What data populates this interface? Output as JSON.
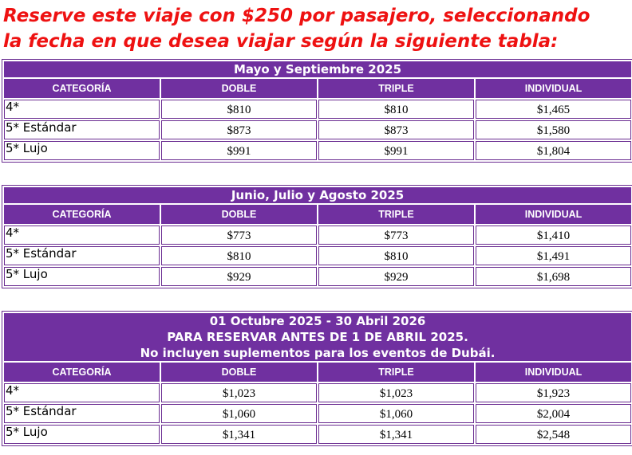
{
  "headline": {
    "line1": "Reserve este viaje con $250 por pasajero, seleccionando",
    "line2": "la fecha en que desea viajar según la siguiente tabla:"
  },
  "columns": [
    "CATEGORÍA",
    "DOBLE",
    "TRIPLE",
    "INDIVIDUAL"
  ],
  "tables": [
    {
      "title_lines": [
        "Mayo y Septiembre 2025"
      ],
      "rows": [
        {
          "category": "4*",
          "doble": "$810",
          "triple": "$810",
          "individual": "$1,465"
        },
        {
          "category": "5* Estándar",
          "doble": "$873",
          "triple": "$873",
          "individual": "$1,580"
        },
        {
          "category": "5* Lujo",
          "doble": "$991",
          "triple": "$991",
          "individual": "$1,804"
        }
      ]
    },
    {
      "title_lines": [
        "Junio, Julio y Agosto 2025"
      ],
      "rows": [
        {
          "category": "4*",
          "doble": "$773",
          "triple": "$773",
          "individual": "$1,410"
        },
        {
          "category": "5* Estándar",
          "doble": "$810",
          "triple": "$810",
          "individual": "$1,491"
        },
        {
          "category": "5* Lujo",
          "doble": "$929",
          "triple": "$929",
          "individual": "$1,698"
        }
      ]
    },
    {
      "title_lines": [
        "01 Octubre 2025 - 30 Abril 2026",
        "PARA RESERVAR ANTES DE 1 DE ABRIL 2025.",
        "No incluyen suplementos para los eventos de Dubái."
      ],
      "rows": [
        {
          "category": "4*",
          "doble": "$1,023",
          "triple": "$1,023",
          "individual": "$1,923"
        },
        {
          "category": "5* Estándar",
          "doble": "$1,060",
          "triple": "$1,060",
          "individual": "$2,004"
        },
        {
          "category": "5* Lujo",
          "doble": "$1,341",
          "triple": "$1,341",
          "individual": "$2,548"
        }
      ]
    }
  ],
  "colors": {
    "headline_red": "#ee1111",
    "header_purple": "#7030a0",
    "border_purple": "#6a2c91"
  }
}
